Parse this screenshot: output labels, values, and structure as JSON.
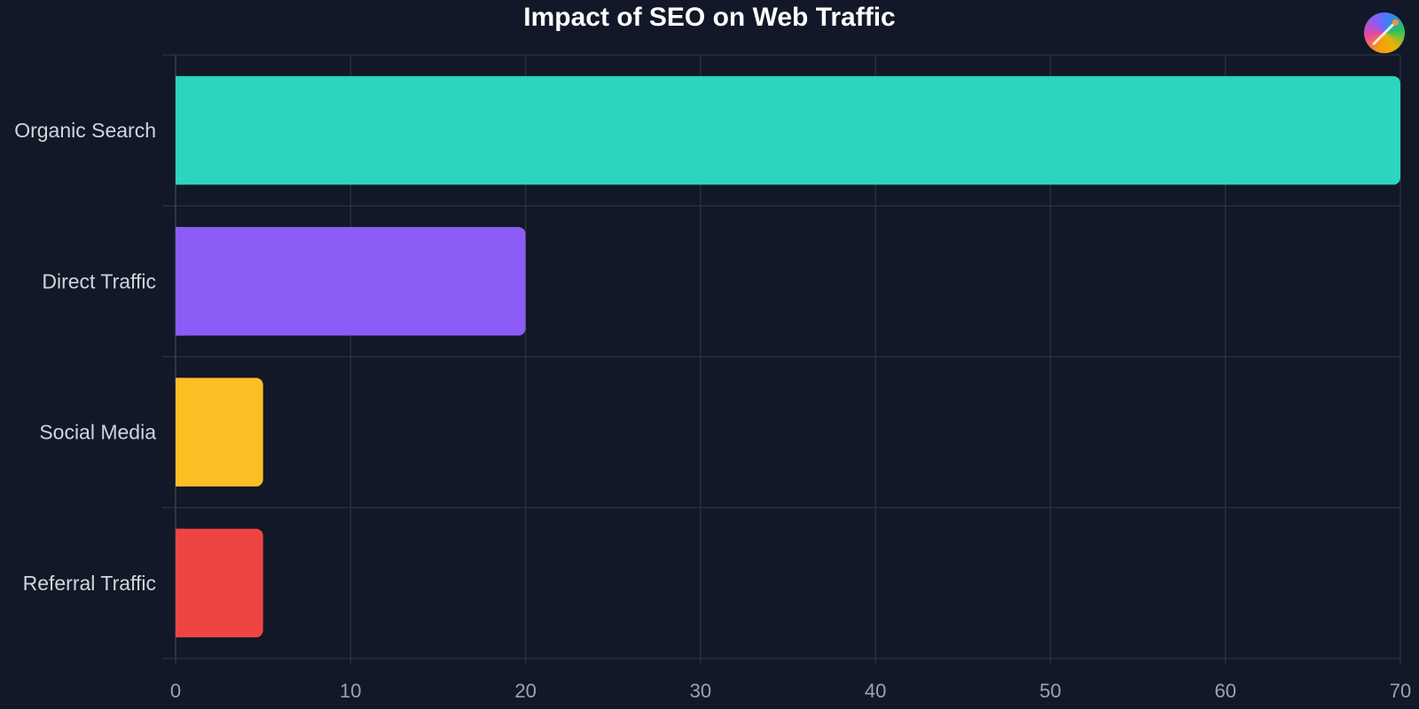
{
  "chart_data": {
    "type": "bar",
    "orientation": "horizontal",
    "title": "Impact of SEO on Web Traffic",
    "xlabel": "",
    "ylabel": "",
    "categories": [
      "Organic Search",
      "Direct Traffic",
      "Social Media",
      "Referral Traffic"
    ],
    "values": [
      70,
      20,
      5,
      5
    ],
    "colors": [
      "#2dd4bf",
      "#8b5cf6",
      "#fbbf24",
      "#ef4444"
    ],
    "xlim": [
      0,
      70
    ],
    "xticks": [
      0,
      10,
      20,
      30,
      40,
      50,
      60,
      70
    ],
    "grid": true,
    "legend": "none"
  },
  "toolbar": {
    "logo_icon": "color-wheel-icon"
  },
  "theme": {
    "background": "#121827",
    "grid": "#2b3342"
  }
}
